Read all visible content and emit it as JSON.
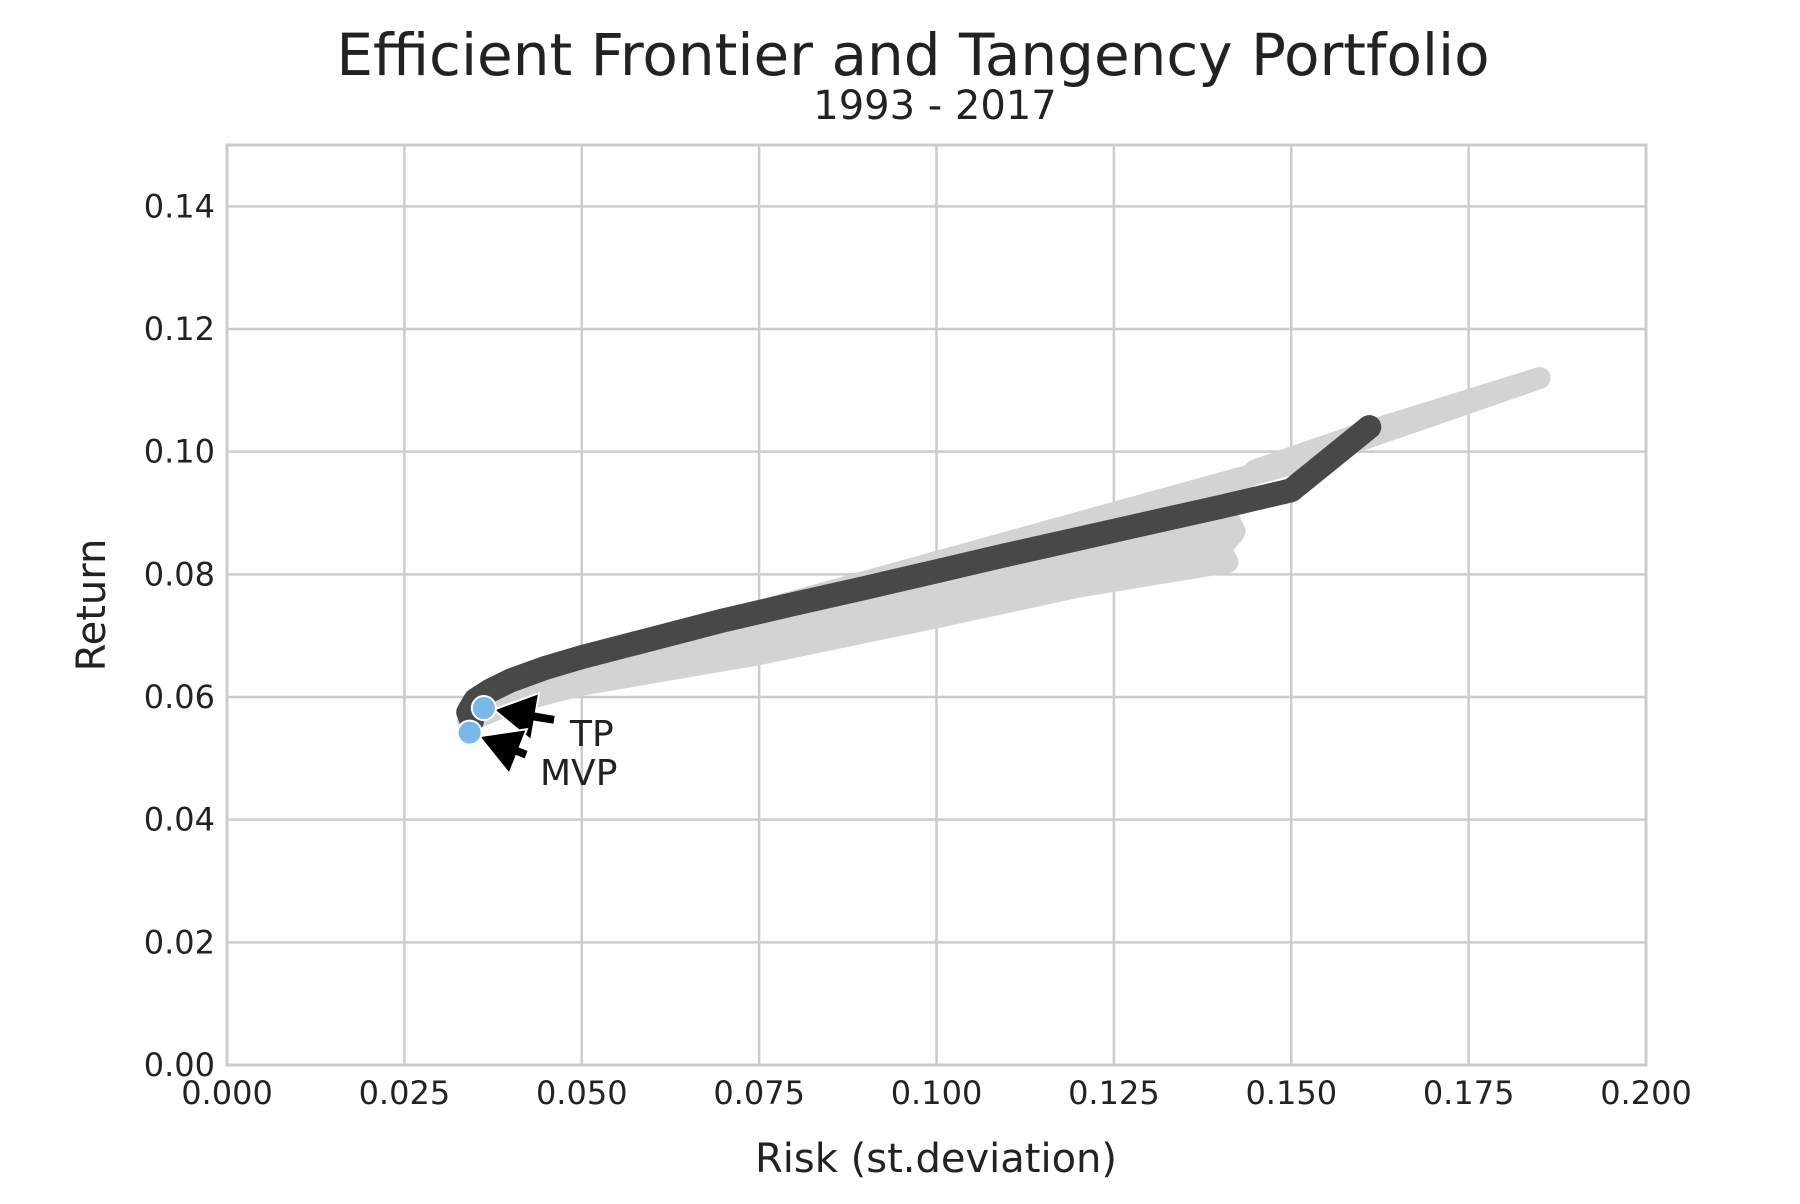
{
  "chart_data": {
    "type": "scatter",
    "title": "Efficient Frontier and Tangency Portfolio",
    "subtitle": "1993 - 2017",
    "xlabel": "Risk (st.deviation)",
    "ylabel": "Return",
    "xlim": [
      0.0,
      0.2
    ],
    "ylim": [
      0.0,
      0.15
    ],
    "xticks": [
      "0.000",
      "0.025",
      "0.050",
      "0.075",
      "0.100",
      "0.125",
      "0.150",
      "0.175",
      "0.200"
    ],
    "yticks": [
      "0.00",
      "0.02",
      "0.04",
      "0.06",
      "0.08",
      "0.10",
      "0.12",
      "0.14"
    ],
    "grid": true,
    "legend": "none",
    "colors": {
      "cloud": "#d3d3d3",
      "frontier": "#484848",
      "markers": "#7ab8e8",
      "grid": "#cccccc",
      "arrow": "#000000"
    },
    "series": [
      {
        "kind": "area",
        "upper_x": [
          0.034,
          0.036,
          0.04,
          0.05,
          0.075,
          0.1,
          0.125,
          0.15,
          0.185
        ],
        "upper_y": [
          0.056,
          0.058,
          0.061,
          0.066,
          0.074,
          0.082,
          0.09,
          0.098,
          0.112
        ],
        "lower_x": [
          0.185,
          0.16,
          0.145,
          0.14,
          0.142,
          0.14,
          0.141,
          0.12,
          0.1,
          0.075,
          0.05,
          0.04,
          0.034
        ],
        "lower_y": [
          0.112,
          0.103,
          0.097,
          0.092,
          0.087,
          0.084,
          0.082,
          0.078,
          0.073,
          0.067,
          0.062,
          0.059,
          0.056
        ]
      },
      {
        "kind": "line",
        "x": [
          0.0345,
          0.034,
          0.035,
          0.037,
          0.04,
          0.045,
          0.05,
          0.06,
          0.07,
          0.08,
          0.09,
          0.1,
          0.11,
          0.12,
          0.13,
          0.14,
          0.15,
          0.161
        ],
        "y": [
          0.056,
          0.0575,
          0.0595,
          0.061,
          0.0627,
          0.0648,
          0.0665,
          0.0695,
          0.0725,
          0.0752,
          0.0778,
          0.0805,
          0.0832,
          0.0858,
          0.0884,
          0.091,
          0.0937,
          0.104
        ]
      }
    ],
    "annotations": [
      {
        "label": "TP",
        "x": 0.0362,
        "y": 0.0582
      },
      {
        "label": "MVP",
        "x": 0.0342,
        "y": 0.0542
      }
    ]
  }
}
